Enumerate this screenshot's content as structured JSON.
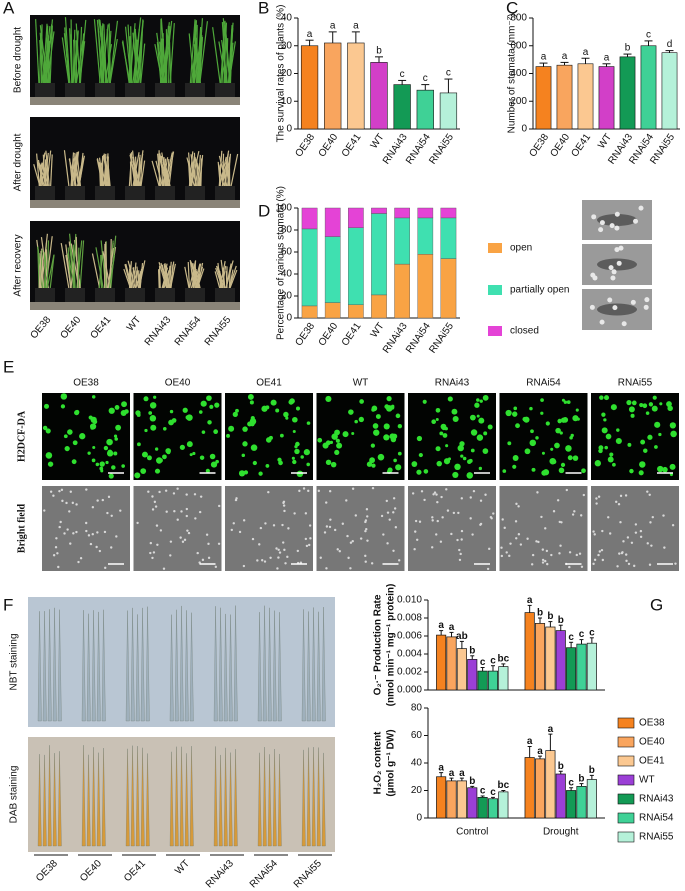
{
  "panel_letters": [
    "A",
    "B",
    "C",
    "D",
    "E",
    "F",
    "G"
  ],
  "panel_a": {
    "row_labels": [
      "Before drought",
      "After drought",
      "After recovery"
    ],
    "categories": [
      "OE38",
      "OE40",
      "OE41",
      "WT",
      "RNAi43",
      "RNAi54",
      "RNAi55"
    ]
  },
  "panel_e": {
    "column_labels": [
      "OE38",
      "OE40",
      "OE41",
      "WT",
      "RNAi43",
      "RNAi54",
      "RNAi55"
    ],
    "row_labels": [
      "H2DCF-DA",
      "Bright field"
    ]
  },
  "panel_f": {
    "row_labels": [
      "NBT staining",
      "DAB staining"
    ],
    "categories": [
      "OE38",
      "OE40",
      "OE41",
      "WT",
      "RNAi43",
      "RNAi54",
      "RNAi55"
    ]
  },
  "chart_data": [
    {
      "type": "bar",
      "ylabel": "The survival rates of plants (%)",
      "categories": [
        "OE38",
        "OE40",
        "OE41",
        "WT",
        "RNAi43",
        "RNAi54",
        "RNAi55"
      ],
      "values": [
        30,
        31,
        31,
        24,
        16,
        14,
        13
      ],
      "errors": [
        2,
        4,
        4,
        2,
        1.5,
        2,
        5
      ],
      "letters": [
        "a",
        "a",
        "a",
        "b",
        "c",
        "c",
        "c"
      ],
      "colors": [
        "#f5821f",
        "#f9a55e",
        "#fbc891",
        "#d23fc8",
        "#139a55",
        "#3fd196",
        "#b5f1d9"
      ],
      "ylim": [
        0,
        40
      ],
      "yticks": [
        0,
        10,
        20,
        30,
        40
      ]
    },
    {
      "type": "bar",
      "ylabel": "Number of stomata (mm⁻²)",
      "categories": [
        "OE38",
        "OE40",
        "OE41",
        "WT",
        "RNAi43",
        "RNAi54",
        "RNAi55"
      ],
      "values": [
        450,
        460,
        470,
        450,
        520,
        600,
        550
      ],
      "errors": [
        25,
        20,
        40,
        20,
        20,
        35,
        15
      ],
      "letters": [
        "a",
        "a",
        "a",
        "a",
        "b",
        "c",
        "d"
      ],
      "colors": [
        "#f5821f",
        "#f9a55e",
        "#fbc891",
        "#d23fc8",
        "#139a55",
        "#3fd196",
        "#b5f1d9"
      ],
      "ylim": [
        0,
        800
      ],
      "yticks": [
        0,
        200,
        400,
        600,
        800
      ]
    },
    {
      "type": "bar",
      "stacked": true,
      "ylabel": "Percentage of various stomata (%)",
      "categories": [
        "OE38",
        "OE40",
        "OE41",
        "WT",
        "RNAi43",
        "RNAi54",
        "RNAi55"
      ],
      "series": [
        {
          "name": "open",
          "color": "#f9a344",
          "values": [
            11,
            14,
            12,
            21,
            49,
            58,
            54
          ]
        },
        {
          "name": "partially open",
          "color": "#3fe0b0",
          "values": [
            70,
            60,
            70,
            74,
            42,
            33,
            37
          ]
        },
        {
          "name": "closed",
          "color": "#e443d6",
          "values": [
            19,
            26,
            18,
            5,
            9,
            9,
            9
          ]
        }
      ],
      "ylim": [
        0,
        100
      ],
      "yticks": [
        0,
        20,
        40,
        60,
        80,
        100
      ]
    },
    {
      "type": "bar",
      "ylabel": [
        "O₂·⁻ Production Rate",
        "(nmol min⁻¹ mg⁻¹ protein)"
      ],
      "series": [
        {
          "color": "#f5821f",
          "values": [
            0.0061,
            0.0086
          ],
          "errors": [
            0.0005,
            0.0008
          ],
          "letters": [
            "a",
            "a"
          ]
        },
        {
          "color": "#f9a55e",
          "values": [
            0.0059,
            0.0074
          ],
          "errors": [
            0.0005,
            0.0006
          ],
          "letters": [
            "a",
            "b"
          ]
        },
        {
          "color": "#fbc891",
          "values": [
            0.0046,
            0.007
          ],
          "errors": [
            0.0008,
            0.0006
          ],
          "letters": [
            "ab",
            "b"
          ]
        },
        {
          "color": "#9b3fd6",
          "values": [
            0.0034,
            0.0066
          ],
          "errors": [
            0.0004,
            0.0006
          ],
          "letters": [
            "b",
            "b"
          ]
        },
        {
          "color": "#139a55",
          "values": [
            0.0021,
            0.0047
          ],
          "errors": [
            0.0004,
            0.0006
          ],
          "letters": [
            "c",
            "c"
          ]
        },
        {
          "color": "#3fd196",
          "values": [
            0.0021,
            0.0051
          ],
          "errors": [
            0.0006,
            0.0005
          ],
          "letters": [
            "c",
            "c"
          ]
        },
        {
          "color": "#b5f1d9",
          "values": [
            0.0026,
            0.0052
          ],
          "errors": [
            0.0003,
            0.0006
          ],
          "letters": [
            "bc",
            "c"
          ]
        }
      ],
      "ylim": [
        0,
        0.01
      ],
      "yticks": [
        {
          "value": 0,
          "label": "0.000"
        },
        {
          "value": 0.002,
          "label": "0.002"
        },
        {
          "value": 0.004,
          "label": "0.004"
        },
        {
          "value": 0.006,
          "label": "0.006"
        },
        {
          "value": 0.008,
          "label": "0.008"
        },
        {
          "value": 0.01,
          "label": "0.010"
        }
      ]
    },
    {
      "type": "bar",
      "ylabel": [
        "H₂O₂ content",
        "(µmol g⁻¹ DW)"
      ],
      "categories": [
        "Control",
        "Drought"
      ],
      "series": [
        {
          "name": "OE38",
          "color": "#f5821f",
          "values": [
            30,
            44
          ],
          "errors": [
            3,
            8
          ],
          "letters": [
            "a",
            "a"
          ]
        },
        {
          "name": "OE40",
          "color": "#f9a55e",
          "values": [
            27,
            43
          ],
          "errors": [
            2,
            2
          ],
          "letters": [
            "a",
            "a"
          ]
        },
        {
          "name": "OE41",
          "color": "#fbc891",
          "values": [
            27,
            49
          ],
          "errors": [
            2,
            12
          ],
          "letters": [
            "a",
            "a"
          ]
        },
        {
          "name": "WT",
          "color": "#9b3fd6",
          "values": [
            22,
            32
          ],
          "errors": [
            1,
            2
          ],
          "letters": [
            "b",
            "b"
          ]
        },
        {
          "name": "RNAi43",
          "color": "#139a55",
          "values": [
            15,
            20
          ],
          "errors": [
            1,
            2
          ],
          "letters": [
            "c",
            "c"
          ]
        },
        {
          "name": "RNAi54",
          "color": "#3fd196",
          "values": [
            14,
            23
          ],
          "errors": [
            1,
            2
          ],
          "letters": [
            "c",
            "b"
          ]
        },
        {
          "name": "RNAi55",
          "color": "#b5f1d9",
          "values": [
            19,
            28
          ],
          "errors": [
            1,
            3
          ],
          "letters": [
            "bc",
            "b"
          ]
        }
      ],
      "ylim": [
        0,
        80
      ],
      "yticks": [
        0,
        20,
        40,
        60,
        80
      ]
    }
  ]
}
